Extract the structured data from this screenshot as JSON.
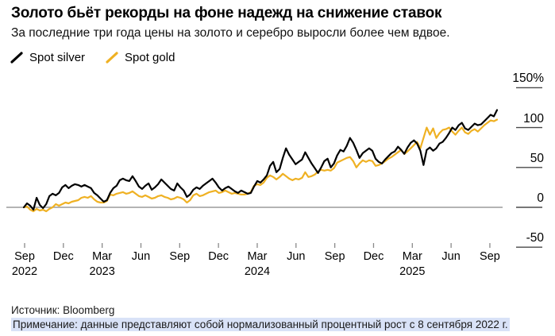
{
  "header": {
    "title": "Золото бьёт рекорды на фоне надежд на снижение ставок",
    "subtitle": "За последние три года цены на золото и серебро выросли более чем вдвое."
  },
  "legend": [
    {
      "label": "Spot silver",
      "color": "#000000"
    },
    {
      "label": "Spot gold",
      "color": "#EFB123"
    }
  ],
  "footer": {
    "source": "Источник: Bloomberg",
    "note": "Примечание: данные представляют собой нормализованный процентный рост с 8 сентября 2022 г."
  },
  "colors": {
    "silver": "#000000",
    "gold": "#EFB123",
    "zero_line": "#9b9b9b",
    "axis_tick": "#4a4a4a",
    "x_tick": "#8a8a8a",
    "note_highlight": "#d9e2f7"
  },
  "chart_data": {
    "type": "line",
    "title": "Золото бьёт рекорды на фоне надежд на снижение ставок",
    "ylabel": "нормализованный процентный рост, %",
    "ylim": [
      -50,
      150
    ],
    "grid": "zero-line-only",
    "legend_position": "top-left",
    "y_axis_side": "right",
    "base_date_label": "8 сентября 2022",
    "yticks": [
      {
        "label": "150%",
        "value": 150
      },
      {
        "label": "100",
        "value": 100
      },
      {
        "label": "50",
        "value": 50
      },
      {
        "label": "0",
        "value": 0
      },
      {
        "label": "-50",
        "value": -50
      }
    ],
    "xticks": [
      {
        "label": "Sep",
        "year": "2022"
      },
      {
        "label": "Dec",
        "year": ""
      },
      {
        "label": "Mar",
        "year": "2023"
      },
      {
        "label": "Jun",
        "year": ""
      },
      {
        "label": "Sep",
        "year": ""
      },
      {
        "label": "Dec",
        "year": ""
      },
      {
        "label": "Mar",
        "year": "2024"
      },
      {
        "label": "Jun",
        "year": ""
      },
      {
        "label": "Sep",
        "year": ""
      },
      {
        "label": "Dec",
        "year": ""
      },
      {
        "label": "Mar",
        "year": "2025"
      },
      {
        "label": "Jun",
        "year": ""
      },
      {
        "label": "Sep",
        "year": ""
      }
    ],
    "series": [
      {
        "name": "Spot silver",
        "color": "#000000",
        "values": [
          0,
          5,
          2,
          -3,
          12,
          3,
          -1,
          4,
          14,
          17,
          15,
          18,
          25,
          28,
          24,
          27,
          29,
          28,
          26,
          28,
          26,
          24,
          18,
          15,
          11,
          7,
          9,
          18,
          24,
          27,
          34,
          36,
          34,
          33,
          39,
          33,
          26,
          23,
          27,
          30,
          22,
          25,
          29,
          35,
          31,
          27,
          23,
          21,
          30,
          25,
          21,
          13,
          16,
          22,
          25,
          23,
          27,
          30,
          33,
          36,
          31,
          25,
          21,
          24,
          26,
          23,
          20,
          18,
          21,
          19,
          17,
          18,
          26,
          33,
          31,
          35,
          40,
          52,
          57,
          44,
          48,
          62,
          74,
          66,
          60,
          54,
          57,
          60,
          69,
          62,
          55,
          49,
          43,
          50,
          58,
          61,
          50,
          55,
          65,
          72,
          70,
          77,
          87,
          81,
          72,
          62,
          68,
          71,
          74,
          71,
          61,
          57,
          55,
          60,
          64,
          68,
          70,
          76,
          72,
          67,
          75,
          81,
          84,
          80,
          71,
          53,
          72,
          75,
          71,
          74,
          80,
          82,
          87,
          93,
          100,
          97,
          103,
          106,
          99,
          97,
          101,
          105,
          103,
          104,
          108,
          112,
          116,
          114,
          122
        ]
      },
      {
        "name": "Spot gold",
        "color": "#EFB123",
        "values": [
          0,
          1,
          -3,
          -5,
          -2,
          -4,
          -3,
          -5,
          -2,
          0,
          4,
          2,
          4,
          6,
          5,
          7,
          8,
          9,
          12,
          13,
          12,
          14,
          10,
          7,
          6,
          6,
          8,
          16,
          15,
          17,
          18,
          19,
          17,
          18,
          20,
          17,
          14,
          13,
          15,
          13,
          11,
          12,
          14,
          15,
          13,
          12,
          10,
          11,
          13,
          12,
          10,
          6,
          9,
          15,
          17,
          14,
          15,
          17,
          19,
          20,
          21,
          18,
          19,
          21,
          19,
          17,
          18,
          17,
          16,
          16,
          17,
          19,
          27,
          29,
          28,
          31,
          37,
          40,
          38,
          35,
          38,
          42,
          39,
          36,
          34,
          36,
          35,
          37,
          44,
          38,
          39,
          41,
          45,
          47,
          46,
          47,
          46,
          49,
          56,
          58,
          60,
          62,
          63,
          58,
          50,
          55,
          59,
          57,
          59,
          58,
          52,
          53,
          55,
          58,
          61,
          63,
          66,
          69,
          72,
          67,
          70,
          74,
          78,
          82,
          74,
          87,
          100,
          91,
          99,
          87,
          93,
          97,
          98,
          100,
          95,
          91,
          96,
          100,
          94,
          92,
          96,
          98,
          95,
          99,
          103,
          106,
          109,
          108,
          110
        ]
      }
    ]
  }
}
